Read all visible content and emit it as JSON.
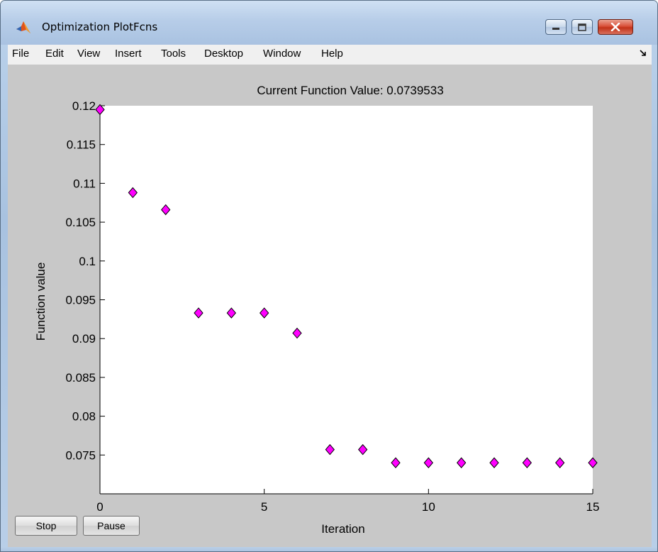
{
  "window": {
    "title": "Optimization PlotFcns"
  },
  "menu": {
    "items": [
      "File",
      "Edit",
      "View",
      "Insert",
      "Tools",
      "Desktop",
      "Window",
      "Help"
    ]
  },
  "plot": {
    "title": "Current Function Value: 0.0739533"
  },
  "buttons": {
    "stop": "Stop",
    "pause": "Pause"
  },
  "colors": {
    "marker_fill": "#ff00ff",
    "marker_edge": "#000000",
    "figure_bg": "#c8c8c8",
    "axes_bg": "#ffffff"
  },
  "chart_data": {
    "type": "scatter",
    "title": "Current Function Value: 0.0739533",
    "xlabel": "Iteration",
    "ylabel": "Function value",
    "x": [
      0,
      1,
      2,
      3,
      4,
      5,
      6,
      7,
      8,
      9,
      10,
      11,
      12,
      13,
      14,
      15
    ],
    "y": [
      0.1195,
      0.1088,
      0.1066,
      0.0933,
      0.0933,
      0.0933,
      0.0907,
      0.0757,
      0.0757,
      0.074,
      0.074,
      0.074,
      0.074,
      0.074,
      0.074,
      0.074
    ],
    "xlim": [
      0,
      15
    ],
    "ylim": [
      0.07,
      0.12
    ],
    "xticks": [
      0,
      5,
      10,
      15
    ],
    "xtick_labels": [
      "0",
      "5",
      "10",
      "15"
    ],
    "yticks": [
      0.075,
      0.08,
      0.085,
      0.09,
      0.095,
      0.1,
      0.105,
      0.11,
      0.115,
      0.12
    ],
    "ytick_labels": [
      "0.075",
      "0.08",
      "0.085",
      "0.09",
      "0.095",
      "0.1",
      "0.105",
      "0.11",
      "0.115",
      "0.12"
    ],
    "marker": "diamond",
    "grid": false,
    "legend": "none"
  }
}
